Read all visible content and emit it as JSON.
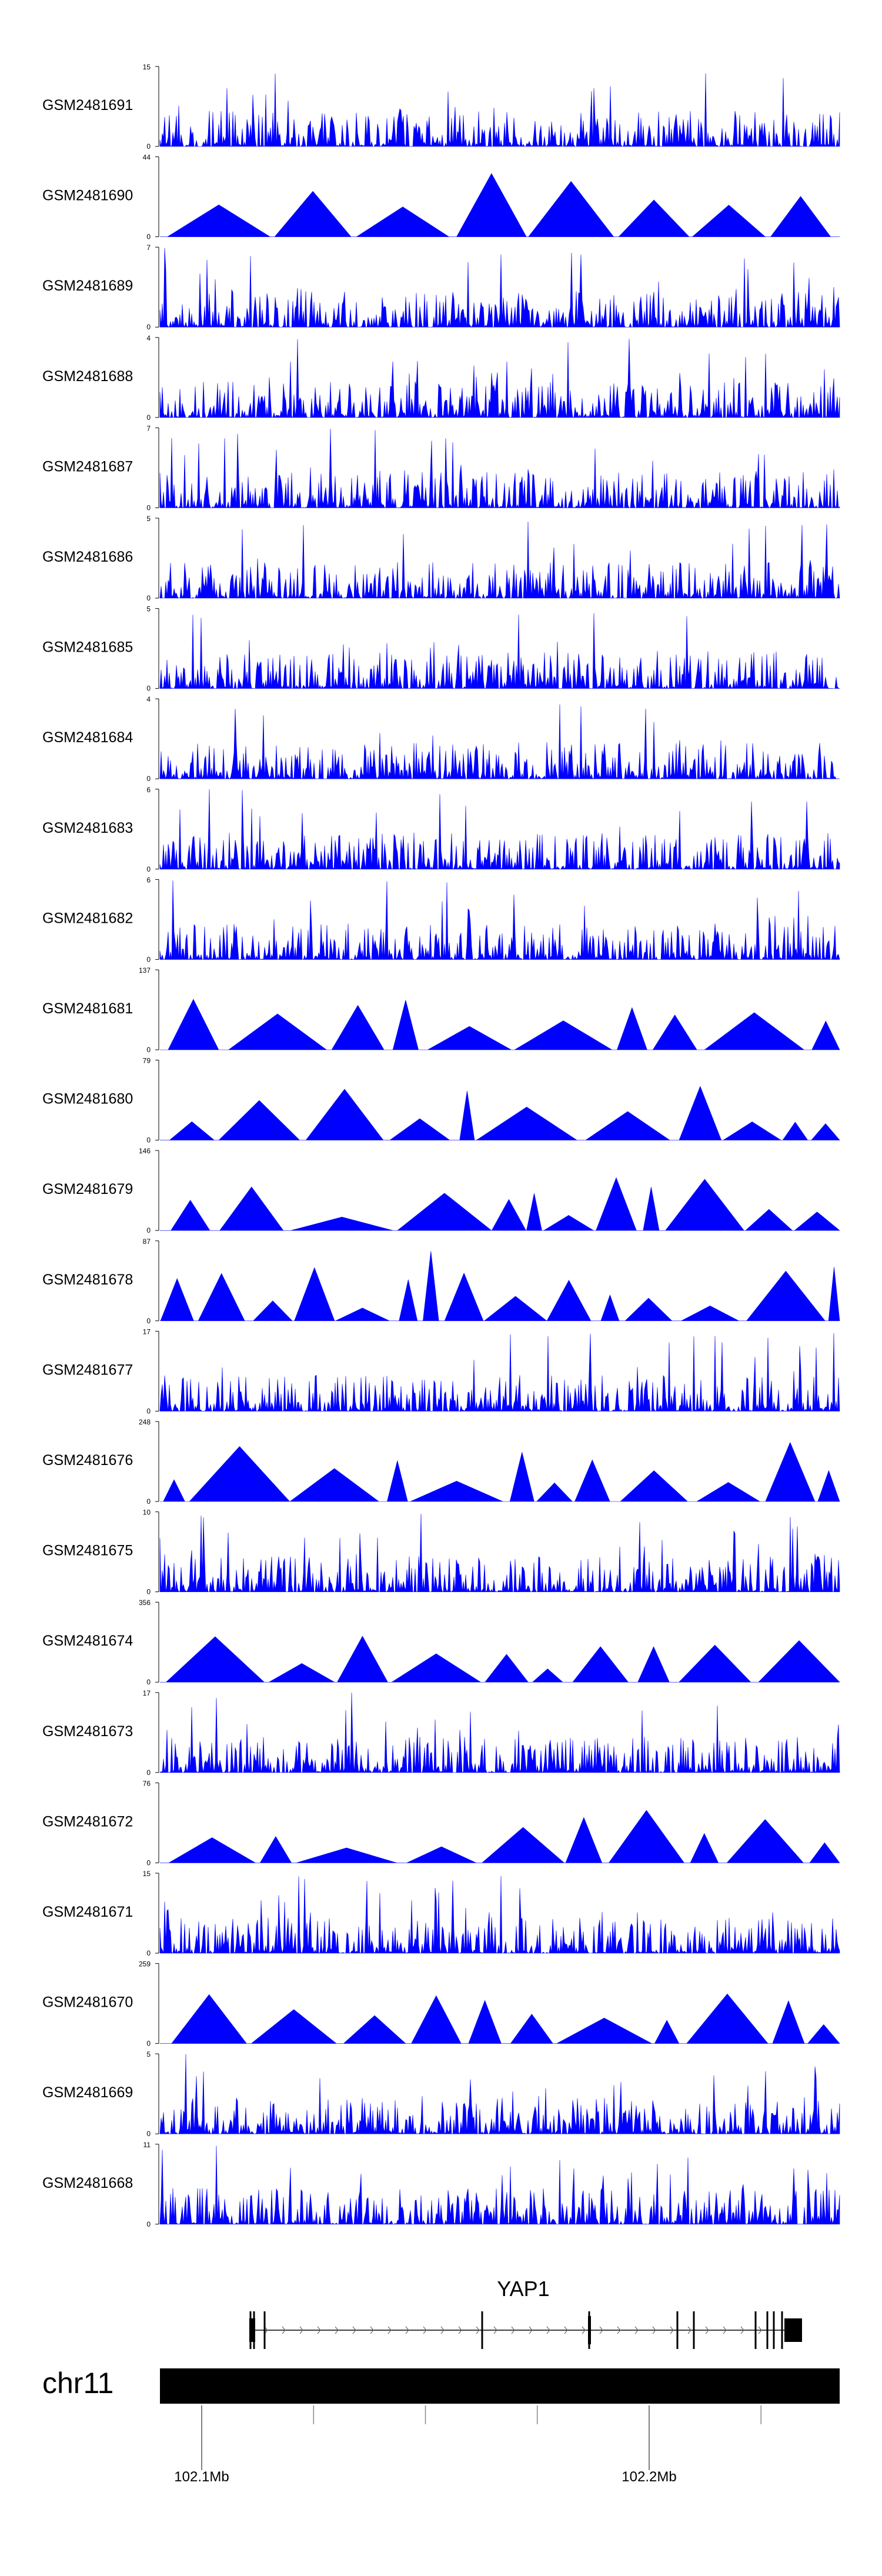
{
  "chart_data": {
    "type": "area",
    "title": "",
    "track_color": "#0000ff",
    "tracks": [
      {
        "name": "GSM2481691",
        "ymax": "15",
        "ymin": "0",
        "style": "spiky"
      },
      {
        "name": "GSM2481690",
        "ymax": "44",
        "ymin": "0",
        "style": "triangles"
      },
      {
        "name": "GSM2481689",
        "ymax": "7",
        "ymin": "0",
        "style": "spiky"
      },
      {
        "name": "GSM2481688",
        "ymax": "4",
        "ymin": "0",
        "style": "spiky"
      },
      {
        "name": "GSM2481687",
        "ymax": "7",
        "ymin": "0",
        "style": "spiky"
      },
      {
        "name": "GSM2481686",
        "ymax": "5",
        "ymin": "0",
        "style": "spiky"
      },
      {
        "name": "GSM2481685",
        "ymax": "5",
        "ymin": "0",
        "style": "spiky"
      },
      {
        "name": "GSM2481684",
        "ymax": "4",
        "ymin": "0",
        "style": "spiky"
      },
      {
        "name": "GSM2481683",
        "ymax": "6",
        "ymin": "0",
        "style": "spiky"
      },
      {
        "name": "GSM2481682",
        "ymax": "6",
        "ymin": "0",
        "style": "spiky"
      },
      {
        "name": "GSM2481681",
        "ymax": "137",
        "ymin": "0",
        "style": "triangles"
      },
      {
        "name": "GSM2481680",
        "ymax": "79",
        "ymin": "0",
        "style": "triangles"
      },
      {
        "name": "GSM2481679",
        "ymax": "146",
        "ymin": "0",
        "style": "triangles"
      },
      {
        "name": "GSM2481678",
        "ymax": "87",
        "ymin": "0",
        "style": "triangles"
      },
      {
        "name": "GSM2481677",
        "ymax": "17",
        "ymin": "0",
        "style": "spiky"
      },
      {
        "name": "GSM2481676",
        "ymax": "248",
        "ymin": "0",
        "style": "triangles"
      },
      {
        "name": "GSM2481675",
        "ymax": "10",
        "ymin": "0",
        "style": "spiky"
      },
      {
        "name": "GSM2481674",
        "ymax": "356",
        "ymin": "0",
        "style": "triangles"
      },
      {
        "name": "GSM2481673",
        "ymax": "17",
        "ymin": "0",
        "style": "spiky"
      },
      {
        "name": "GSM2481672",
        "ymax": "76",
        "ymin": "0",
        "style": "triangles"
      },
      {
        "name": "GSM2481671",
        "ymax": "15",
        "ymin": "0",
        "style": "spiky"
      },
      {
        "name": "GSM2481670",
        "ymax": "259",
        "ymin": "0",
        "style": "triangles"
      },
      {
        "name": "GSM2481669",
        "ymax": "5",
        "ymin": "0",
        "style": "spiky"
      },
      {
        "name": "GSM2481668",
        "ymax": "11",
        "ymin": "0",
        "style": "spiky"
      }
    ],
    "gene": {
      "name": "YAP1"
    },
    "chromosome": {
      "name": "chr11"
    },
    "x_axis": {
      "ticks": [
        {
          "label": "102.1Mb",
          "pos": 102.1
        },
        {
          "label": "102.2Mb",
          "pos": 102.2
        }
      ]
    }
  }
}
